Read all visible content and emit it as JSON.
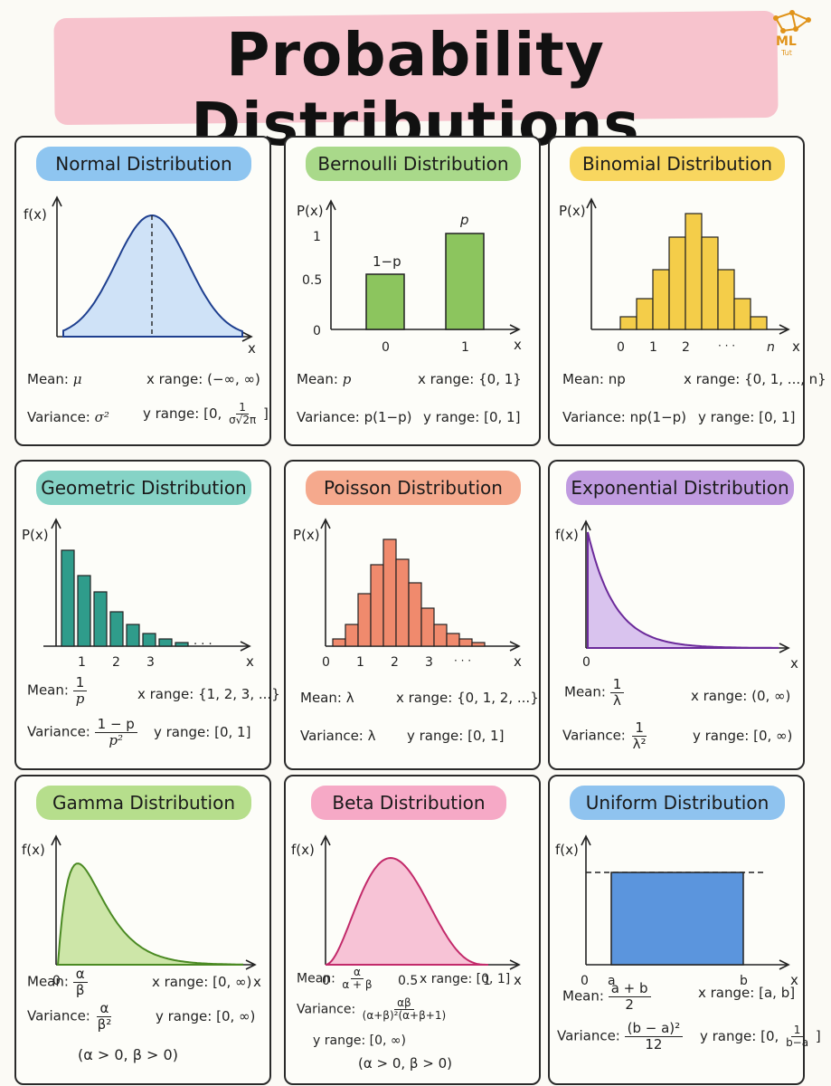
{
  "page_title": "Probability Distributions",
  "logo": {
    "text": "ML",
    "sub": "Tut"
  },
  "labels": {
    "mean": "Mean:",
    "variance": "Variance:",
    "x_range": "x range:",
    "y_range": "y range:"
  },
  "cards": {
    "normal": {
      "title": "Normal Distribution",
      "color": "#8ec5f0",
      "ylabel": "f(x)",
      "xlabel": "x",
      "mean": "μ",
      "variance": "σ²",
      "x_range": "(−∞, ∞)",
      "y_range_pre": "[0,",
      "y_range_num": "1",
      "y_range_den": "σ√2π",
      "y_range_post": "]"
    },
    "bernoulli": {
      "title": "Bernoulli Distribution",
      "color": "#a9d98a",
      "ylabel": "P(x)",
      "xlabel": "x",
      "yticks": [
        "1",
        "0.5",
        "0"
      ],
      "xticks": [
        "0",
        "1"
      ],
      "bar_labels": [
        "1−p",
        "p"
      ],
      "mean": "p",
      "variance": "p(1−p)",
      "x_range": "{0, 1}",
      "y_range": "[0, 1]"
    },
    "binomial": {
      "title": "Binomial Distribution",
      "color": "#f8d65f",
      "ylabel": "P(x)",
      "xlabel": "x",
      "xticks": [
        "0",
        "1",
        "2",
        "· · ·",
        "n"
      ],
      "mean": "np",
      "variance": "np(1−p)",
      "x_range": "{0, 1, ..., n}",
      "y_range": "[0, 1]"
    },
    "geometric": {
      "title": "Geometric Distribution",
      "color": "#86d3c6",
      "ylabel": "P(x)",
      "xlabel": "x",
      "xticks": [
        "1",
        "2",
        "3"
      ],
      "dots": ". . .",
      "mean_num": "1",
      "mean_den": "p",
      "variance_num": "1 − p",
      "variance_den": "p²",
      "x_range": "{1, 2, 3, ...}",
      "y_range": "[0, 1]"
    },
    "poisson": {
      "title": "Poisson Distribution",
      "color": "#f5a98d",
      "ylabel": "P(x)",
      "xlabel": "x",
      "xticks": [
        "0",
        "1",
        "2",
        "3",
        "· · ·"
      ],
      "mean": "λ",
      "variance": "λ",
      "x_range": "{0, 1, 2, ...}",
      "y_range": "[0, 1]"
    },
    "exponential": {
      "title": "Exponential Distribution",
      "color": "#c09be0",
      "ylabel": "f(x)",
      "xlabel": "x",
      "xticks": [
        "0"
      ],
      "mean_num": "1",
      "mean_den": "λ",
      "variance_num": "1",
      "variance_den": "λ²",
      "x_range": "(0, ∞)",
      "y_range": "[0, ∞)"
    },
    "gamma": {
      "title": "Gamma Distribution",
      "color": "#b6de8c",
      "ylabel": "f(x)",
      "xlabel": "x",
      "xticks": [
        "0"
      ],
      "mean_num": "α",
      "mean_den": "β",
      "variance_num": "α",
      "variance_den": "β²",
      "x_range": "[0, ∞)",
      "y_range": "[0, ∞)",
      "constraint": "(α > 0, β > 0)"
    },
    "beta": {
      "title": "Beta Distribution",
      "color": "#f6a9c6",
      "ylabel": "f(x)",
      "xlabel": "x",
      "xticks": [
        "0",
        "0.5",
        "1"
      ],
      "mean_num": "α",
      "mean_den": "α + β",
      "variance_num": "αβ",
      "variance_den": "(α+β)²(α+β+1)",
      "x_range": "[0, 1]",
      "y_range": "[0, ∞)",
      "constraint": "(α > 0, β > 0)"
    },
    "uniform": {
      "title": "Uniform Distribution",
      "color": "#8fc3ef",
      "ylabel": "f(x)",
      "xlabel": "x",
      "xticks": [
        "0",
        "a",
        "b"
      ],
      "mean_num": "a + b",
      "mean_den": "2",
      "variance_num": "(b − a)²",
      "variance_den": "12",
      "x_range": "[a, b]",
      "y_range_pre": "[0,",
      "y_range_num": "1",
      "y_range_den": "b−a",
      "y_range_post": "]"
    }
  }
}
